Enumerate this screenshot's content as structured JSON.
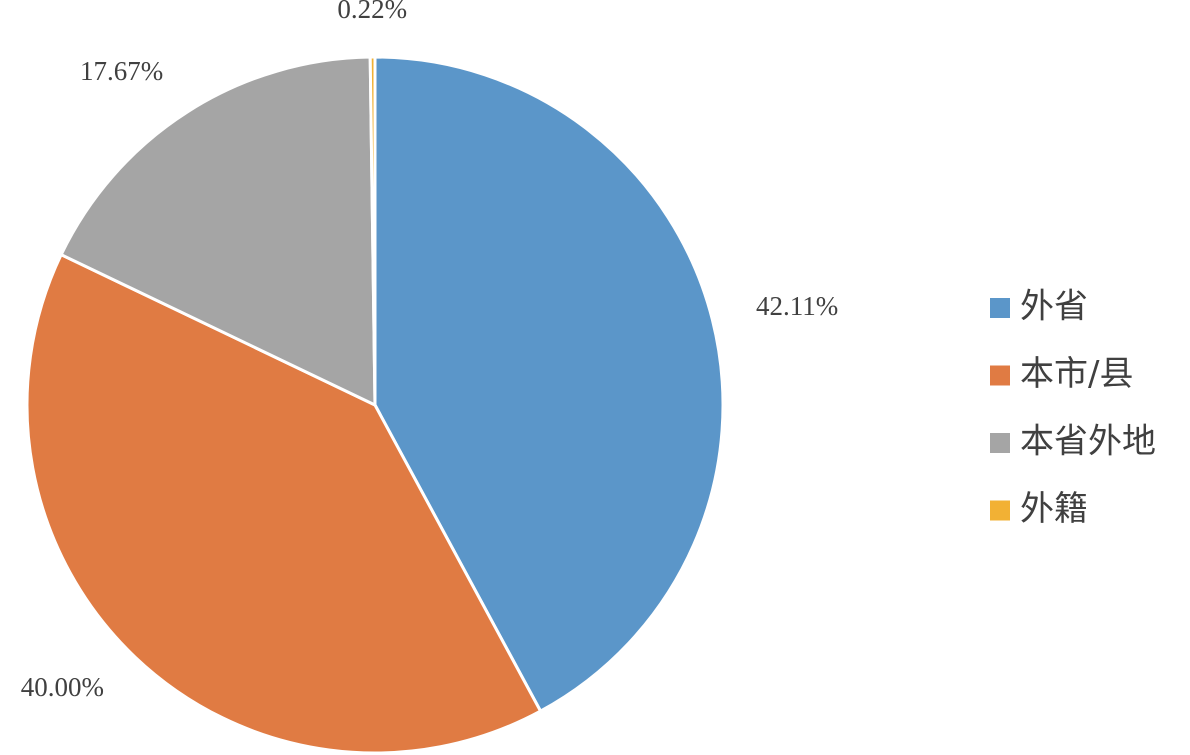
{
  "chart_data": {
    "type": "pie",
    "categories": [
      "外省",
      "本市/县",
      "本省外地",
      "外籍"
    ],
    "values": [
      42.11,
      40.0,
      17.67,
      0.22
    ],
    "value_labels": [
      "42.11%",
      "40.00%",
      "17.67%",
      "0.22%"
    ],
    "colors": [
      "#5b96c9",
      "#e07b43",
      "#a5a5a5",
      "#f2b134"
    ],
    "legend": "right"
  }
}
